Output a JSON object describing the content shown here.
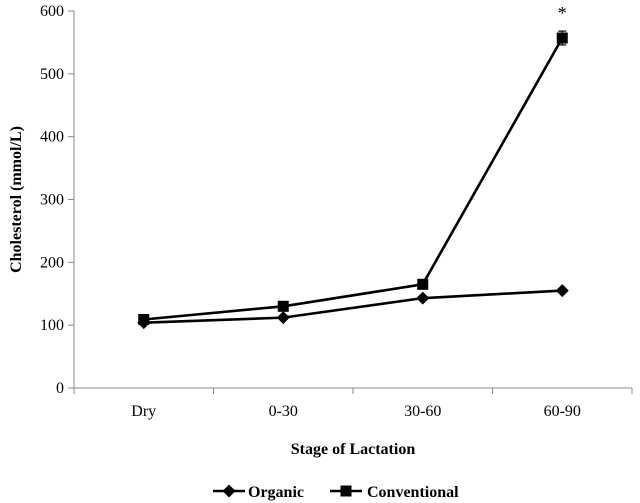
{
  "chart_data": {
    "type": "line",
    "title": "",
    "xlabel": "Stage of Lactation",
    "ylabel": "Cholesterol (mmol/L)",
    "categories": [
      "Dry",
      "0-30",
      "30-60",
      "60-90"
    ],
    "ylim": [
      0,
      600
    ],
    "yticks": [
      0,
      100,
      200,
      300,
      400,
      500,
      600
    ],
    "grid": false,
    "legend_position": "bottom",
    "series": [
      {
        "name": "Organic",
        "marker": "diamond",
        "values": [
          104,
          112,
          143,
          155
        ]
      },
      {
        "name": "Conventional",
        "marker": "square",
        "values": [
          109,
          130,
          165,
          557
        ],
        "error": [
          null,
          null,
          null,
          11
        ]
      }
    ],
    "annotations": [
      {
        "text": "*",
        "category": "60-90",
        "series": "Conventional"
      }
    ]
  }
}
